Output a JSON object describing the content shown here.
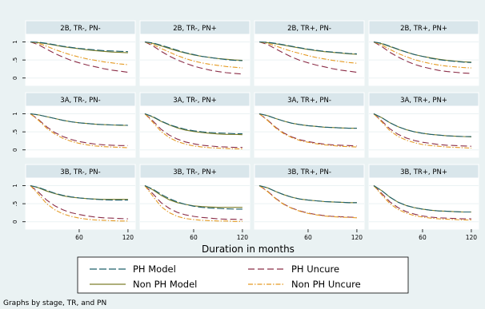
{
  "chart_data": {
    "type": "line",
    "xlabel": "Duration in months",
    "footnote": "Graphs by stage, TR, and PN",
    "x_ticks": [
      60,
      120
    ],
    "y_ticks": [
      0,
      0.5,
      1
    ],
    "y_tick_labels": [
      "0",
      ".5",
      "1"
    ],
    "xlim": [
      0,
      125
    ],
    "ylim": [
      -0.05,
      1.1
    ],
    "x": [
      0,
      10,
      20,
      30,
      40,
      50,
      60,
      70,
      80,
      90,
      100,
      110,
      120
    ],
    "legend": {
      "placement": "bottom",
      "entries": [
        {
          "key": "ph_model",
          "label": "PH Model"
        },
        {
          "key": "ph_uncure",
          "label": "PH Uncure"
        },
        {
          "key": "nonph_model",
          "label": "Non PH Model"
        },
        {
          "key": "nonph_uncure",
          "label": "Non PH Uncure"
        }
      ]
    },
    "styles": {
      "ph_model": {
        "color": "#1e5f6a",
        "dash": "9 3"
      },
      "ph_uncure": {
        "color": "#8b2d47",
        "dash": "8 4"
      },
      "nonph_model": {
        "color": "#7d7f2a",
        "dash": ""
      },
      "nonph_uncure": {
        "color": "#e59b24",
        "dash": "6 2 1.5 2"
      }
    },
    "panels": [
      {
        "title": "2B, TR-, PN-",
        "series": {
          "ph_model": [
            1.0,
            0.99,
            0.96,
            0.92,
            0.88,
            0.85,
            0.82,
            0.8,
            0.78,
            0.76,
            0.75,
            0.74,
            0.73
          ],
          "nonph_model": [
            1.0,
            0.98,
            0.95,
            0.91,
            0.87,
            0.84,
            0.81,
            0.78,
            0.76,
            0.74,
            0.72,
            0.71,
            0.7
          ],
          "ph_uncure": [
            1.0,
            0.92,
            0.8,
            0.68,
            0.58,
            0.49,
            0.42,
            0.36,
            0.31,
            0.26,
            0.22,
            0.19,
            0.16
          ],
          "nonph_uncure": [
            1.0,
            0.96,
            0.88,
            0.79,
            0.71,
            0.64,
            0.58,
            0.53,
            0.49,
            0.45,
            0.42,
            0.39,
            0.37
          ]
        }
      },
      {
        "title": "2B, TR-, PN+",
        "series": {
          "ph_model": [
            1.0,
            0.97,
            0.91,
            0.84,
            0.77,
            0.7,
            0.65,
            0.6,
            0.57,
            0.54,
            0.51,
            0.49,
            0.48
          ],
          "nonph_model": [
            1.0,
            0.96,
            0.89,
            0.82,
            0.75,
            0.69,
            0.64,
            0.6,
            0.57,
            0.54,
            0.52,
            0.5,
            0.49
          ],
          "ph_uncure": [
            1.0,
            0.89,
            0.74,
            0.61,
            0.5,
            0.41,
            0.33,
            0.27,
            0.22,
            0.18,
            0.15,
            0.13,
            0.11
          ],
          "nonph_uncure": [
            1.0,
            0.93,
            0.82,
            0.72,
            0.62,
            0.54,
            0.47,
            0.42,
            0.38,
            0.35,
            0.32,
            0.3,
            0.28
          ]
        }
      },
      {
        "title": "2B, TR+, PN-",
        "series": {
          "ph_model": [
            1.0,
            0.99,
            0.96,
            0.92,
            0.88,
            0.84,
            0.8,
            0.77,
            0.74,
            0.72,
            0.7,
            0.68,
            0.67
          ],
          "nonph_model": [
            1.0,
            0.98,
            0.95,
            0.91,
            0.87,
            0.83,
            0.79,
            0.76,
            0.73,
            0.71,
            0.69,
            0.67,
            0.66
          ],
          "ph_uncure": [
            1.0,
            0.93,
            0.81,
            0.69,
            0.58,
            0.49,
            0.42,
            0.36,
            0.31,
            0.26,
            0.22,
            0.19,
            0.16
          ],
          "nonph_uncure": [
            1.0,
            0.96,
            0.89,
            0.81,
            0.74,
            0.68,
            0.62,
            0.57,
            0.53,
            0.49,
            0.46,
            0.43,
            0.41
          ]
        }
      },
      {
        "title": "2B, TR+, PN+",
        "series": {
          "ph_model": [
            1.0,
            0.96,
            0.88,
            0.8,
            0.72,
            0.65,
            0.6,
            0.55,
            0.51,
            0.48,
            0.46,
            0.44,
            0.43
          ],
          "nonph_model": [
            1.0,
            0.95,
            0.87,
            0.79,
            0.72,
            0.65,
            0.6,
            0.56,
            0.52,
            0.49,
            0.47,
            0.45,
            0.44
          ],
          "ph_uncure": [
            1.0,
            0.87,
            0.71,
            0.58,
            0.47,
            0.38,
            0.31,
            0.26,
            0.21,
            0.18,
            0.16,
            0.14,
            0.13
          ],
          "nonph_uncure": [
            1.0,
            0.91,
            0.79,
            0.68,
            0.59,
            0.51,
            0.45,
            0.4,
            0.36,
            0.33,
            0.31,
            0.29,
            0.28
          ]
        }
      },
      {
        "title": "3A, TR-, PN-",
        "series": {
          "ph_model": [
            1.0,
            0.97,
            0.92,
            0.87,
            0.82,
            0.78,
            0.75,
            0.73,
            0.71,
            0.7,
            0.69,
            0.69,
            0.68
          ],
          "nonph_model": [
            1.0,
            0.97,
            0.92,
            0.87,
            0.82,
            0.78,
            0.75,
            0.73,
            0.71,
            0.7,
            0.69,
            0.68,
            0.68
          ],
          "ph_uncure": [
            1.0,
            0.84,
            0.64,
            0.48,
            0.37,
            0.29,
            0.23,
            0.19,
            0.16,
            0.14,
            0.13,
            0.12,
            0.12
          ],
          "nonph_uncure": [
            1.0,
            0.82,
            0.6,
            0.44,
            0.32,
            0.24,
            0.18,
            0.14,
            0.11,
            0.09,
            0.08,
            0.07,
            0.06
          ]
        }
      },
      {
        "title": "3A, TR-, PN+",
        "series": {
          "ph_model": [
            1.0,
            0.92,
            0.8,
            0.7,
            0.63,
            0.57,
            0.53,
            0.5,
            0.48,
            0.47,
            0.46,
            0.45,
            0.45
          ],
          "nonph_model": [
            1.0,
            0.91,
            0.79,
            0.69,
            0.61,
            0.55,
            0.51,
            0.48,
            0.46,
            0.44,
            0.43,
            0.43,
            0.42
          ],
          "ph_uncure": [
            1.0,
            0.8,
            0.57,
            0.41,
            0.3,
            0.22,
            0.17,
            0.13,
            0.11,
            0.09,
            0.08,
            0.07,
            0.07
          ],
          "nonph_uncure": [
            1.0,
            0.76,
            0.51,
            0.34,
            0.23,
            0.16,
            0.11,
            0.08,
            0.06,
            0.05,
            0.04,
            0.03,
            0.03
          ]
        }
      },
      {
        "title": "3A, TR+, PN-",
        "series": {
          "ph_model": [
            1.0,
            0.95,
            0.87,
            0.8,
            0.74,
            0.7,
            0.67,
            0.65,
            0.63,
            0.62,
            0.61,
            0.6,
            0.6
          ],
          "nonph_model": [
            1.0,
            0.95,
            0.87,
            0.8,
            0.74,
            0.7,
            0.67,
            0.65,
            0.63,
            0.62,
            0.61,
            0.6,
            0.6
          ],
          "ph_uncure": [
            1.0,
            0.83,
            0.63,
            0.47,
            0.36,
            0.28,
            0.23,
            0.19,
            0.16,
            0.14,
            0.13,
            0.12,
            0.11
          ],
          "nonph_uncure": [
            1.0,
            0.82,
            0.61,
            0.45,
            0.34,
            0.26,
            0.21,
            0.17,
            0.14,
            0.12,
            0.1,
            0.09,
            0.08
          ]
        }
      },
      {
        "title": "3A, TR+, PN+",
        "series": {
          "ph_model": [
            1.0,
            0.89,
            0.75,
            0.64,
            0.56,
            0.5,
            0.46,
            0.43,
            0.41,
            0.39,
            0.38,
            0.37,
            0.37
          ],
          "nonph_model": [
            1.0,
            0.89,
            0.75,
            0.64,
            0.56,
            0.5,
            0.46,
            0.43,
            0.41,
            0.39,
            0.38,
            0.37,
            0.36
          ],
          "ph_uncure": [
            1.0,
            0.8,
            0.58,
            0.43,
            0.33,
            0.26,
            0.21,
            0.18,
            0.15,
            0.13,
            0.12,
            0.11,
            0.1
          ],
          "nonph_uncure": [
            1.0,
            0.77,
            0.53,
            0.37,
            0.27,
            0.2,
            0.15,
            0.12,
            0.1,
            0.08,
            0.07,
            0.06,
            0.05
          ]
        }
      },
      {
        "title": "3B, TR-, PN-",
        "series": {
          "ph_model": [
            1.0,
            0.95,
            0.87,
            0.79,
            0.73,
            0.69,
            0.66,
            0.64,
            0.62,
            0.61,
            0.6,
            0.6,
            0.6
          ],
          "nonph_model": [
            1.0,
            0.94,
            0.85,
            0.78,
            0.72,
            0.68,
            0.66,
            0.64,
            0.63,
            0.62,
            0.62,
            0.62,
            0.62
          ],
          "ph_uncure": [
            1.0,
            0.82,
            0.6,
            0.44,
            0.33,
            0.25,
            0.2,
            0.16,
            0.13,
            0.11,
            0.1,
            0.09,
            0.08
          ],
          "nonph_uncure": [
            1.0,
            0.76,
            0.5,
            0.33,
            0.22,
            0.15,
            0.1,
            0.07,
            0.05,
            0.04,
            0.03,
            0.02,
            0.02
          ]
        }
      },
      {
        "title": "3B, TR-, PN+",
        "series": {
          "ph_model": [
            1.0,
            0.9,
            0.76,
            0.64,
            0.55,
            0.48,
            0.43,
            0.4,
            0.38,
            0.37,
            0.36,
            0.35,
            0.35
          ],
          "nonph_model": [
            1.0,
            0.88,
            0.73,
            0.61,
            0.53,
            0.48,
            0.44,
            0.42,
            0.41,
            0.4,
            0.4,
            0.4,
            0.4
          ],
          "ph_uncure": [
            1.0,
            0.77,
            0.53,
            0.37,
            0.26,
            0.19,
            0.15,
            0.12,
            0.1,
            0.08,
            0.07,
            0.07,
            0.06
          ],
          "nonph_uncure": [
            1.0,
            0.7,
            0.42,
            0.25,
            0.15,
            0.09,
            0.06,
            0.04,
            0.03,
            0.02,
            0.02,
            0.01,
            0.01
          ]
        }
      },
      {
        "title": "3B, TR+, PN-",
        "series": {
          "ph_model": [
            1.0,
            0.94,
            0.84,
            0.75,
            0.68,
            0.63,
            0.6,
            0.58,
            0.56,
            0.55,
            0.54,
            0.53,
            0.53
          ],
          "nonph_model": [
            1.0,
            0.94,
            0.84,
            0.75,
            0.68,
            0.63,
            0.6,
            0.58,
            0.56,
            0.55,
            0.54,
            0.53,
            0.53
          ],
          "ph_uncure": [
            1.0,
            0.85,
            0.65,
            0.49,
            0.38,
            0.3,
            0.24,
            0.2,
            0.17,
            0.15,
            0.14,
            0.13,
            0.12
          ],
          "nonph_uncure": [
            1.0,
            0.84,
            0.64,
            0.48,
            0.37,
            0.29,
            0.23,
            0.19,
            0.16,
            0.14,
            0.13,
            0.12,
            0.11
          ]
        }
      },
      {
        "title": "3B, TR+, PN+",
        "series": {
          "ph_model": [
            1.0,
            0.86,
            0.68,
            0.54,
            0.45,
            0.39,
            0.35,
            0.32,
            0.3,
            0.29,
            0.28,
            0.27,
            0.27
          ],
          "nonph_model": [
            1.0,
            0.86,
            0.68,
            0.54,
            0.45,
            0.39,
            0.35,
            0.32,
            0.3,
            0.29,
            0.28,
            0.27,
            0.27
          ],
          "ph_uncure": [
            1.0,
            0.78,
            0.55,
            0.39,
            0.28,
            0.21,
            0.16,
            0.13,
            0.11,
            0.1,
            0.09,
            0.08,
            0.08
          ],
          "nonph_uncure": [
            1.0,
            0.74,
            0.5,
            0.34,
            0.24,
            0.17,
            0.13,
            0.1,
            0.08,
            0.07,
            0.06,
            0.05,
            0.05
          ]
        }
      }
    ]
  }
}
